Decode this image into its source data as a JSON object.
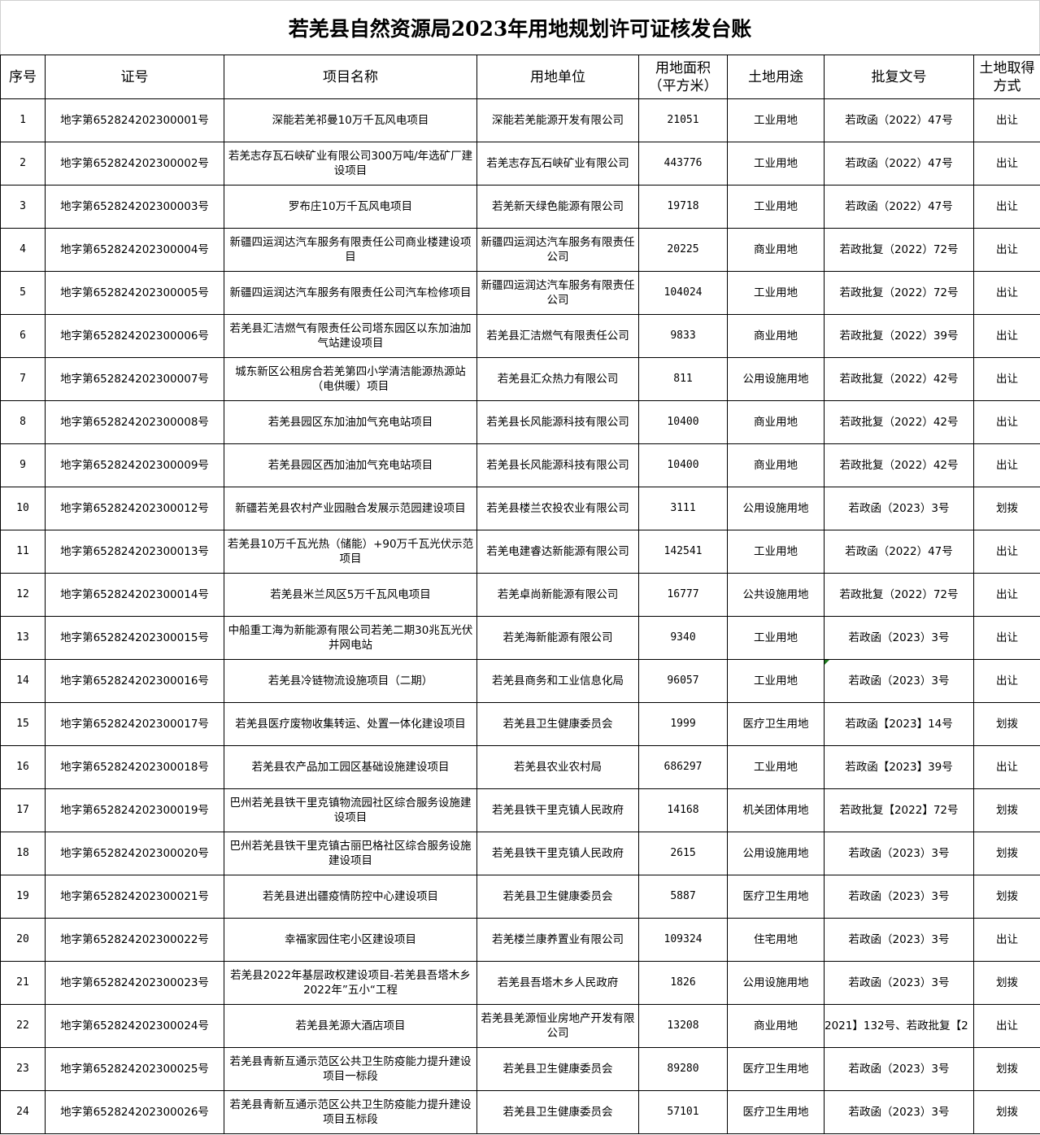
{
  "title": "若羌县自然资源局2023年用地规划许可证核发台账",
  "columns": [
    "序号",
    "证号",
    "项目名称",
    "用地单位",
    "用地面积（平方米）",
    "土地用途",
    "批复文号",
    "土地取得方式"
  ],
  "rows": [
    [
      "1",
      "地字第652824202300001号",
      "深能若羌祁曼10万千瓦风电项目",
      "深能若羌能源开发有限公司",
      "21051",
      "工业用地",
      "若政函（2022）47号",
      "出让"
    ],
    [
      "2",
      "地字第652824202300002号",
      "若羌志存瓦石峡矿业有限公司300万吨/年选矿厂建设项目",
      "若羌志存瓦石峡矿业有限公司",
      "443776",
      "工业用地",
      "若政函（2022）47号",
      "出让"
    ],
    [
      "3",
      "地字第652824202300003号",
      "罗布庄10万千瓦风电项目",
      "若羌新天绿色能源有限公司",
      "19718",
      "工业用地",
      "若政函（2022）47号",
      "出让"
    ],
    [
      "4",
      "地字第652824202300004号",
      "新疆四运润达汽车服务有限责任公司商业楼建设项目",
      "新疆四运润达汽车服务有限责任公司",
      "20225",
      "商业用地",
      "若政批复（2022）72号",
      "出让"
    ],
    [
      "5",
      "地字第652824202300005号",
      "新疆四运润达汽车服务有限责任公司汽车检修项目",
      "新疆四运润达汽车服务有限责任公司",
      "104024",
      "工业用地",
      "若政批复（2022）72号",
      "出让"
    ],
    [
      "6",
      "地字第652824202300006号",
      "若羌县汇洁燃气有限责任公司塔东园区以东加油加气站建设项目",
      "若羌县汇洁燃气有限责任公司",
      "9833",
      "商业用地",
      "若政批复（2022）39号",
      "出让"
    ],
    [
      "7",
      "地字第652824202300007号",
      "城东新区公租房合若羌第四小学清洁能源热源站（电供暖）项目",
      "若羌县汇众热力有限公司",
      "811",
      "公用设施用地",
      "若政批复（2022）42号",
      "出让"
    ],
    [
      "8",
      "地字第652824202300008号",
      "若羌县园区东加油加气充电站项目",
      "若羌县长风能源科技有限公司",
      "10400",
      "商业用地",
      "若政批复（2022）42号",
      "出让"
    ],
    [
      "9",
      "地字第652824202300009号",
      "若羌县园区西加油加气充电站项目",
      "若羌县长风能源科技有限公司",
      "10400",
      "商业用地",
      "若政批复（2022）42号",
      "出让"
    ],
    [
      "10",
      "地字第652824202300012号",
      "新疆若羌县农村产业园融合发展示范园建设项目",
      "若羌县楼兰农投农业有限公司",
      "3111",
      "公用设施用地",
      "若政函（2023）3号",
      "划拨"
    ],
    [
      "11",
      "地字第652824202300013号",
      "若羌县10万千瓦光热（储能）+90万千瓦光伏示范项目",
      "若羌电建睿达新能源有限公司",
      "142541",
      "工业用地",
      "若政函（2022）47号",
      "出让"
    ],
    [
      "12",
      "地字第652824202300014号",
      "若羌县米兰风区5万千瓦风电项目",
      "若羌卓尚新能源有限公司",
      "16777",
      "公共设施用地",
      "若政批复（2022）72号",
      "出让"
    ],
    [
      "13",
      "地字第652824202300015号",
      "中船重工海为新能源有限公司若羌二期30兆瓦光伏并网电站",
      "若羌海新能源有限公司",
      "9340",
      "工业用地",
      "若政函（2023）3号",
      "出让"
    ],
    [
      "14",
      "地字第652824202300016号",
      "若羌县冷链物流设施项目（二期）",
      "若羌县商务和工业信息化局",
      "96057",
      "工业用地",
      "若政函（2023）3号",
      "出让"
    ],
    [
      "15",
      "地字第652824202300017号",
      "若羌县医疗废物收集转运、处置一体化建设项目",
      "若羌县卫生健康委员会",
      "1999",
      "医疗卫生用地",
      "若政函【2023】14号",
      "划拨"
    ],
    [
      "16",
      "地字第652824202300018号",
      "若羌县农产品加工园区基础设施建设项目",
      "若羌县农业农村局",
      "686297",
      "工业用地",
      "若政函【2023】39号",
      "出让"
    ],
    [
      "17",
      "地字第652824202300019号",
      "巴州若羌县铁干里克镇物流园社区综合服务设施建设项目",
      "若羌县铁干里克镇人民政府",
      "14168",
      "机关团体用地",
      "若政批复【2022】72号",
      "划拨"
    ],
    [
      "18",
      "地字第652824202300020号",
      "巴州若羌县铁干里克镇古丽巴格社区综合服务设施建设项目",
      "若羌县铁干里克镇人民政府",
      "2615",
      "公用设施用地",
      "若政函（2023）3号",
      "划拨"
    ],
    [
      "19",
      "地字第652824202300021号",
      "若羌县进出疆疫情防控中心建设项目",
      "若羌县卫生健康委员会",
      "5887",
      "医疗卫生用地",
      "若政函（2023）3号",
      "划拨"
    ],
    [
      "20",
      "地字第652824202300022号",
      "幸福家园住宅小区建设项目",
      "若羌楼兰康养置业有限公司",
      "109324",
      "住宅用地",
      "若政函（2023）3号",
      "出让"
    ],
    [
      "21",
      "地字第652824202300023号",
      "若羌县2022年基层政权建设项目-若羌县吾塔木乡2022年”五小“工程",
      "若羌县吾塔木乡人民政府",
      "1826",
      "公用设施用地",
      "若政函（2023）3号",
      "划拨"
    ],
    [
      "22",
      "地字第652824202300024号",
      "若羌县羌源大酒店项目",
      "若羌县羌源恒业房地产开发有限公司",
      "13208",
      "商业用地",
      "2021】132号、若政批复【2",
      "出让"
    ],
    [
      "23",
      "地字第652824202300025号",
      "若羌县青新互通示范区公共卫生防疫能力提升建设项目一标段",
      "若羌县卫生健康委员会",
      "89280",
      "医疗卫生用地",
      "若政函（2023）3号",
      "划拨"
    ],
    [
      "24",
      "地字第652824202300026号",
      "若羌县青新互通示范区公共卫生防疫能力提升建设项目五标段",
      "若羌县卫生健康委员会",
      "57101",
      "医疗卫生用地",
      "若政函（2023）3号",
      "划拨"
    ]
  ],
  "colors": {
    "border": "#000000",
    "error_marker": "#1e7b1e"
  }
}
